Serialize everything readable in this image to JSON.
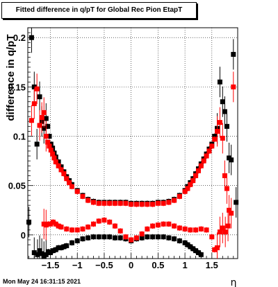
{
  "title": "Fitted difference in q/pT for Global Rec Pion EtapT",
  "timestamp": "Mon May 24 16:31:15 2021",
  "chart_data": {
    "type": "scatter",
    "title": "Fitted difference in q/pT for Global Rec Pion EtapT",
    "xlabel": "η",
    "ylabel": "difference in q/pT",
    "xlim": [
      -1.92,
      1.98
    ],
    "ylim": [
      -0.024,
      0.21
    ],
    "grid": true,
    "xticks": [
      -1.5,
      -1,
      -0.5,
      0,
      0.5,
      1,
      1.5
    ],
    "xtick_labels": [
      "−1.5",
      "−1",
      "−0.5",
      "0",
      "0.5",
      "1",
      "1.5"
    ],
    "yticks": [
      0,
      0.05,
      0.1,
      0.15,
      0.2
    ],
    "ytick_labels": [
      "0",
      "0.05",
      "0.1",
      "0.15",
      "0.2"
    ],
    "series": [
      {
        "color": "#000000",
        "x": [
          -1.9,
          -1.8,
          -1.74,
          -1.7,
          -1.66,
          -1.62,
          -1.58,
          -1.54,
          -1.5,
          -1.45,
          -1.4,
          -1.35,
          -1.3,
          -1.25,
          -1.2,
          -1.1,
          -1.0,
          -0.9,
          -0.8,
          -0.7,
          -0.6,
          -0.5,
          -0.4,
          -0.3,
          -0.2,
          -0.1,
          0.0,
          0.1,
          0.2,
          0.3,
          0.4,
          0.5,
          0.6,
          0.7,
          0.8,
          0.9,
          1.0,
          1.05,
          1.1,
          1.15,
          1.2,
          1.25,
          1.3
        ],
        "y": [
          0.013,
          -0.018,
          -0.02,
          -0.016,
          -0.019,
          -0.022,
          -0.02,
          -0.017,
          -0.018,
          -0.016,
          -0.015,
          -0.013,
          -0.013,
          -0.012,
          -0.011,
          -0.008,
          -0.006,
          -0.004,
          -0.003,
          -0.002,
          -0.002,
          -0.002,
          -0.002,
          -0.003,
          -0.003,
          -0.004,
          -0.006,
          -0.004,
          -0.003,
          -0.002,
          -0.002,
          -0.002,
          -0.002,
          -0.003,
          -0.004,
          -0.006,
          -0.008,
          -0.01,
          -0.012,
          -0.014,
          -0.016,
          -0.018,
          -0.02
        ]
      },
      {
        "color": "#000000",
        "x": [
          -1.85,
          -1.8,
          -1.75,
          -1.7,
          -1.66,
          -1.62,
          -1.58,
          -1.55,
          -1.52,
          -1.49,
          -1.46,
          -1.43,
          -1.4,
          -1.35,
          -1.3,
          -1.25,
          -1.2,
          -1.15,
          -1.1,
          -1.0,
          -0.9,
          -0.8,
          -0.7,
          -0.6,
          -0.5,
          -0.4,
          -0.3,
          -0.2,
          -0.1,
          0.0,
          0.1,
          0.2,
          0.3,
          0.4,
          0.5,
          0.6,
          0.7,
          0.8,
          0.9,
          1.0,
          1.05,
          1.1,
          1.15,
          1.2,
          1.25,
          1.3,
          1.35,
          1.4,
          1.45,
          1.5,
          1.55,
          1.6,
          1.65,
          1.7,
          1.74,
          1.78,
          1.82,
          1.86,
          1.9,
          1.95
        ],
        "y": [
          0.2,
          0.15,
          0.092,
          0.14,
          0.115,
          0.108,
          0.118,
          0.11,
          0.1,
          0.092,
          0.088,
          0.083,
          0.079,
          0.074,
          0.069,
          0.064,
          0.059,
          0.055,
          0.051,
          0.045,
          0.04,
          0.036,
          0.034,
          0.033,
          0.033,
          0.033,
          0.033,
          0.033,
          0.033,
          0.032,
          0.032,
          0.032,
          0.032,
          0.032,
          0.033,
          0.033,
          0.034,
          0.036,
          0.04,
          0.045,
          0.049,
          0.053,
          0.057,
          0.062,
          0.067,
          0.072,
          0.077,
          0.082,
          0.087,
          0.092,
          0.1,
          0.108,
          0.155,
          0.135,
          0.125,
          0.11,
          0.078,
          0.076,
          0.183,
          0.033
        ]
      },
      {
        "color": "#ff0000",
        "x": [
          -1.85,
          -1.8,
          -1.75,
          -1.7,
          -1.66,
          -1.62,
          -1.58,
          -1.55,
          -1.52,
          -1.49,
          -1.46,
          -1.43,
          -1.4,
          -1.35,
          -1.3,
          -1.25,
          -1.2,
          -1.15,
          -1.1,
          -1.0,
          -0.9,
          -0.8,
          -0.7,
          -0.6,
          -0.5,
          -0.4,
          -0.3,
          -0.2,
          -0.1,
          0.0,
          0.1,
          0.2,
          0.3,
          0.4,
          0.5,
          0.6,
          0.7,
          0.8,
          0.9,
          1.0,
          1.05,
          1.1,
          1.15,
          1.2,
          1.25,
          1.3,
          1.35,
          1.4,
          1.45,
          1.5,
          1.55,
          1.6,
          1.65,
          1.7,
          1.74,
          1.78,
          1.82,
          1.86,
          1.9
        ],
        "y": [
          0.116,
          0.133,
          0.148,
          0.111,
          0.119,
          0.124,
          0.1,
          0.094,
          0.09,
          0.086,
          0.082,
          0.078,
          0.074,
          0.07,
          0.066,
          0.062,
          0.057,
          0.053,
          0.049,
          0.044,
          0.039,
          0.035,
          0.033,
          0.032,
          0.032,
          0.032,
          0.032,
          0.032,
          0.032,
          0.031,
          0.031,
          0.031,
          0.031,
          0.031,
          0.032,
          0.032,
          0.033,
          0.035,
          0.039,
          0.044,
          0.047,
          0.051,
          0.055,
          0.06,
          0.065,
          0.07,
          0.075,
          0.08,
          0.085,
          0.09,
          0.097,
          0.105,
          0.114,
          0.098,
          0.06,
          0.047,
          0.025,
          0.022,
          0.15
        ]
      },
      {
        "color": "#ff0000",
        "x": [
          -1.62,
          -1.58,
          -1.54,
          -1.5,
          -1.45,
          -1.4,
          -1.35,
          -1.3,
          -1.2,
          -1.1,
          -1.0,
          -0.9,
          -0.8,
          -0.7,
          -0.6,
          -0.5,
          -0.4,
          -0.3,
          -0.2,
          -0.1,
          0.0,
          0.1,
          0.2,
          0.3,
          0.4,
          0.5,
          0.6,
          0.7,
          0.8,
          0.9,
          1.0,
          1.1,
          1.2,
          1.3,
          1.4,
          1.5,
          1.55,
          1.6,
          1.65,
          1.7,
          1.75,
          1.8
        ],
        "y": [
          0.011,
          0.01,
          0.011,
          0.011,
          0.013,
          0.011,
          0.009,
          0.008,
          0.006,
          0.005,
          0.005,
          0.006,
          0.008,
          0.011,
          0.014,
          0.015,
          0.013,
          0.009,
          0.004,
          -0.002,
          -0.005,
          -0.003,
          0.001,
          0.006,
          0.009,
          0.01,
          0.011,
          0.011,
          0.009,
          0.007,
          0.006,
          0.005,
          0.005,
          0.006,
          0.005,
          -0.002,
          -0.015,
          -0.013,
          0.003,
          0.007,
          0.003,
          0.009
        ]
      }
    ]
  }
}
